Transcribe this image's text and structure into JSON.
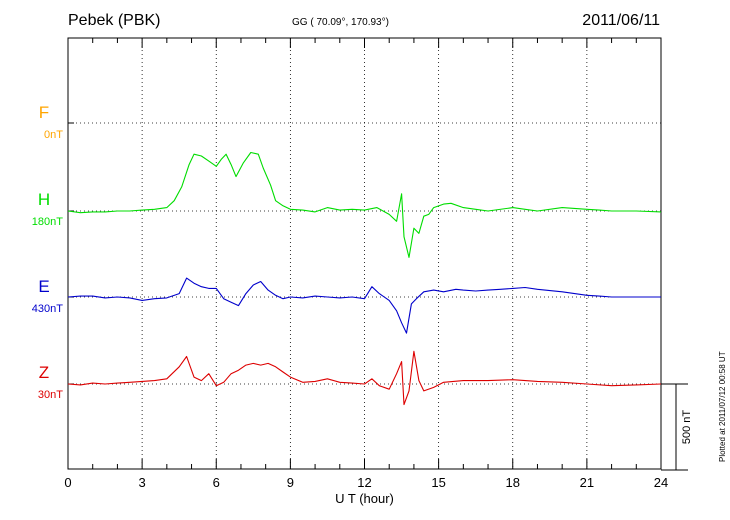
{
  "header": {
    "station": "Pebek (PBK)",
    "coords": "GG ( 70.09°, 170.93°)",
    "date": "2011/06/11"
  },
  "footer": {
    "plotted_note": "Plotted at 2011/07/12 00:58 UT"
  },
  "chart_data": {
    "type": "line",
    "xlabel": "U T (hour)",
    "xlim": [
      0,
      24
    ],
    "xticks": [
      "0",
      "3",
      "6",
      "9",
      "12",
      "15",
      "18",
      "21",
      "24"
    ],
    "grid": "dotted",
    "scale_bar": {
      "label": "500 nT",
      "value_nT": 500
    },
    "series": [
      {
        "name": "F",
        "offset_label": "0nT",
        "color": "#ffa500",
        "points": []
      },
      {
        "name": "H",
        "offset_label": "180nT",
        "color": "#00dd00",
        "points": [
          [
            0,
            0
          ],
          [
            0.5,
            -10
          ],
          [
            1,
            -5
          ],
          [
            1.5,
            -5
          ],
          [
            2,
            0
          ],
          [
            2.5,
            0
          ],
          [
            3,
            5
          ],
          [
            3.5,
            10
          ],
          [
            4,
            20
          ],
          [
            4.3,
            60
          ],
          [
            4.6,
            140
          ],
          [
            4.9,
            270
          ],
          [
            5.1,
            330
          ],
          [
            5.4,
            320
          ],
          [
            5.7,
            290
          ],
          [
            6,
            260
          ],
          [
            6.2,
            300
          ],
          [
            6.4,
            330
          ],
          [
            6.6,
            270
          ],
          [
            6.8,
            200
          ],
          [
            7.1,
            280
          ],
          [
            7.4,
            340
          ],
          [
            7.7,
            330
          ],
          [
            7.9,
            250
          ],
          [
            8.2,
            150
          ],
          [
            8.4,
            60
          ],
          [
            8.7,
            30
          ],
          [
            9,
            10
          ],
          [
            9.5,
            5
          ],
          [
            10,
            -5
          ],
          [
            10.5,
            20
          ],
          [
            11,
            5
          ],
          [
            11.5,
            10
          ],
          [
            12,
            5
          ],
          [
            12.5,
            20
          ],
          [
            13,
            -20
          ],
          [
            13.3,
            -60
          ],
          [
            13.5,
            100
          ],
          [
            13.6,
            -150
          ],
          [
            13.8,
            -270
          ],
          [
            14,
            -100
          ],
          [
            14.2,
            -130
          ],
          [
            14.4,
            -30
          ],
          [
            14.6,
            -20
          ],
          [
            14.8,
            20
          ],
          [
            15.2,
            40
          ],
          [
            15.5,
            45
          ],
          [
            16,
            20
          ],
          [
            16.5,
            10
          ],
          [
            17,
            0
          ],
          [
            18,
            20
          ],
          [
            18.5,
            10
          ],
          [
            19,
            0
          ],
          [
            20,
            20
          ],
          [
            20.5,
            15
          ],
          [
            21,
            10
          ],
          [
            21.5,
            5
          ],
          [
            22,
            0
          ],
          [
            23,
            0
          ],
          [
            24,
            -5
          ]
        ]
      },
      {
        "name": "E",
        "offset_label": "430nT",
        "color": "#0000cc",
        "points": [
          [
            0,
            0
          ],
          [
            0.5,
            5
          ],
          [
            1,
            5
          ],
          [
            1.5,
            -5
          ],
          [
            2,
            0
          ],
          [
            2.5,
            -5
          ],
          [
            3,
            -20
          ],
          [
            3.5,
            -10
          ],
          [
            4,
            -5
          ],
          [
            4.5,
            20
          ],
          [
            4.8,
            110
          ],
          [
            5.1,
            80
          ],
          [
            5.4,
            60
          ],
          [
            5.7,
            50
          ],
          [
            6,
            50
          ],
          [
            6.3,
            -10
          ],
          [
            6.6,
            -30
          ],
          [
            6.9,
            -50
          ],
          [
            7.2,
            20
          ],
          [
            7.5,
            70
          ],
          [
            7.8,
            90
          ],
          [
            8.1,
            40
          ],
          [
            8.4,
            10
          ],
          [
            8.7,
            -10
          ],
          [
            9,
            0
          ],
          [
            9.5,
            -5
          ],
          [
            10,
            5
          ],
          [
            10.5,
            0
          ],
          [
            11,
            -5
          ],
          [
            11.5,
            0
          ],
          [
            12,
            -10
          ],
          [
            12.3,
            60
          ],
          [
            12.6,
            20
          ],
          [
            13,
            -20
          ],
          [
            13.3,
            -80
          ],
          [
            13.5,
            -150
          ],
          [
            13.7,
            -210
          ],
          [
            13.9,
            -40
          ],
          [
            14.1,
            -10
          ],
          [
            14.4,
            30
          ],
          [
            14.8,
            40
          ],
          [
            15.2,
            30
          ],
          [
            15.7,
            45
          ],
          [
            16,
            40
          ],
          [
            16.5,
            35
          ],
          [
            17,
            40
          ],
          [
            17.5,
            45
          ],
          [
            18,
            50
          ],
          [
            18.5,
            55
          ],
          [
            19,
            45
          ],
          [
            20,
            30
          ],
          [
            21,
            10
          ],
          [
            21.5,
            5
          ],
          [
            22,
            0
          ],
          [
            23,
            0
          ],
          [
            24,
            0
          ]
        ]
      },
      {
        "name": "Z",
        "offset_label": "30nT",
        "color": "#dd0000",
        "points": [
          [
            0,
            0
          ],
          [
            0.5,
            -5
          ],
          [
            1,
            5
          ],
          [
            1.5,
            0
          ],
          [
            2,
            5
          ],
          [
            2.5,
            10
          ],
          [
            3,
            15
          ],
          [
            3.5,
            20
          ],
          [
            4,
            30
          ],
          [
            4.5,
            100
          ],
          [
            4.8,
            160
          ],
          [
            5.1,
            40
          ],
          [
            5.4,
            20
          ],
          [
            5.7,
            60
          ],
          [
            6,
            -10
          ],
          [
            6.3,
            10
          ],
          [
            6.6,
            60
          ],
          [
            6.9,
            80
          ],
          [
            7.2,
            110
          ],
          [
            7.5,
            120
          ],
          [
            7.8,
            110
          ],
          [
            8.1,
            120
          ],
          [
            8.4,
            100
          ],
          [
            8.7,
            70
          ],
          [
            9,
            40
          ],
          [
            9.5,
            10
          ],
          [
            10,
            15
          ],
          [
            10.5,
            30
          ],
          [
            11,
            10
          ],
          [
            11.5,
            5
          ],
          [
            12,
            0
          ],
          [
            12.3,
            30
          ],
          [
            12.6,
            -10
          ],
          [
            13,
            -30
          ],
          [
            13.3,
            60
          ],
          [
            13.5,
            130
          ],
          [
            13.6,
            -120
          ],
          [
            13.8,
            -40
          ],
          [
            14,
            190
          ],
          [
            14.2,
            20
          ],
          [
            14.4,
            -40
          ],
          [
            14.8,
            -20
          ],
          [
            15.2,
            10
          ],
          [
            16,
            20
          ],
          [
            17,
            20
          ],
          [
            18,
            25
          ],
          [
            19,
            15
          ],
          [
            20,
            10
          ],
          [
            21,
            0
          ],
          [
            22,
            -10
          ],
          [
            23,
            -5
          ],
          [
            24,
            0
          ]
        ]
      }
    ]
  }
}
